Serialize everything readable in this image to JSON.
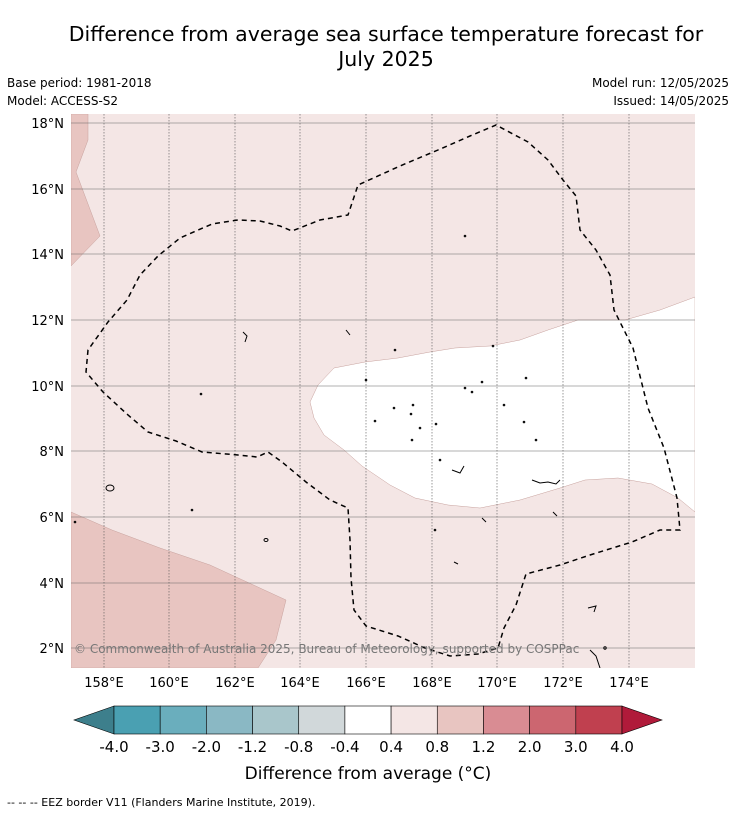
{
  "title_line1": "Difference from average sea surface temperature forecast for",
  "title_line2": "July 2025",
  "base_period": "Base period: 1981-2018",
  "model": "Model: ACCESS-S2",
  "model_run": "Model run: 12/05/2025",
  "issued": "Issued: 14/05/2025",
  "copyright": "© Commonwealth of Australia 2025, Bureau of Meteorology, supported by COSPPac",
  "lat_labels": [
    "18°N",
    "16°N",
    "14°N",
    "12°N",
    "10°N",
    "8°N",
    "6°N",
    "4°N",
    "2°N"
  ],
  "lon_labels": [
    "158°E",
    "160°E",
    "162°E",
    "164°E",
    "166°E",
    "168°E",
    "170°E",
    "172°E",
    "174°E"
  ],
  "colorbar": {
    "title": "Difference from average (°C)",
    "tick_labels": [
      "-4.0",
      "-3.0",
      "-2.0",
      "-1.2",
      "-0.8",
      "-0.4",
      "0.4",
      "0.8",
      "1.2",
      "2.0",
      "3.0",
      "4.0"
    ],
    "colors": [
      "#3d7f8c",
      "#4aa0b2",
      "#6aaebd",
      "#8ab8c4",
      "#a9c6cb",
      "#d1d8da",
      "#ffffff",
      "#f4e6e5",
      "#e8c5c1",
      "#d98c93",
      "#cc6670",
      "#c0404f",
      "#b01a3a"
    ],
    "extend": "both"
  },
  "legend": {
    "eez_line": "-- -- -- EEZ border V11 (Flanders Marine Institute, 2019)."
  }
}
